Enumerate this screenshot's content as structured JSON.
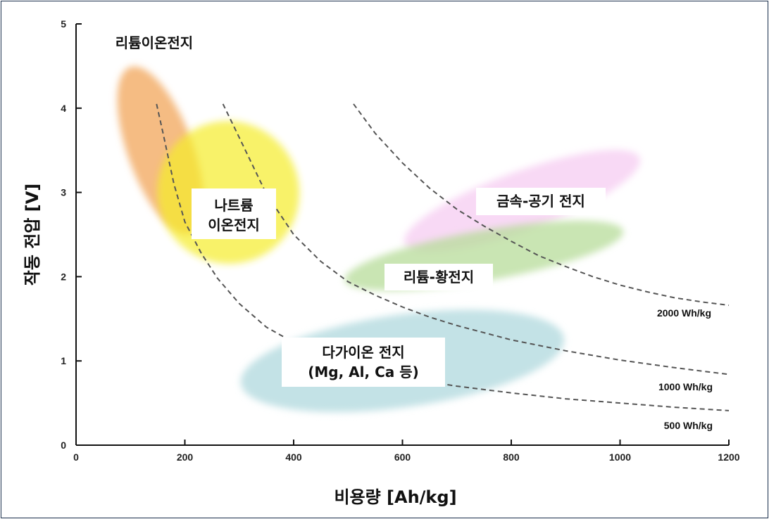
{
  "chart_data": {
    "type": "scatter",
    "title": "",
    "xlabel": "비용량 [Ah/kg]",
    "ylabel": "작동 전압 [V]",
    "xlim": [
      0,
      1200
    ],
    "ylim": [
      0,
      5
    ],
    "xticks": [
      "0",
      "200",
      "400",
      "600",
      "800",
      "1000",
      "1200"
    ],
    "yticks": [
      "0",
      "1",
      "2",
      "3",
      "4",
      "5"
    ],
    "grid": false,
    "regions": [
      {
        "name": "리튬이온전지",
        "lines": [
          "리튬이온전지"
        ],
        "color": "#f2a65a",
        "center": [
          155,
          3.5
        ],
        "rx": 60,
        "ry": 1.05,
        "rotate": -20,
        "opacity": 0.75
      },
      {
        "name": "나트륨 이온전지",
        "lines": [
          "나트륨",
          "이온전지"
        ],
        "color": "#f5ec2a",
        "center": [
          280,
          3.0
        ],
        "rx": 130,
        "ry": 0.85,
        "rotate": -30,
        "opacity": 0.7
      },
      {
        "name": "금속-공기 전지",
        "lines": [
          "금속-공기 전지"
        ],
        "color": "#f3c0ee",
        "center": [
          820,
          2.9
        ],
        "rx": 230,
        "ry": 0.35,
        "rotate": -20,
        "opacity": 0.6
      },
      {
        "name": "리튬-황전지",
        "lines": [
          "리튬-황전지"
        ],
        "color": "#b7dc9a",
        "center": [
          750,
          2.25
        ],
        "rx": 260,
        "ry": 0.3,
        "rotate": -10,
        "opacity": 0.75
      },
      {
        "name": "다가이온 전지",
        "lines": [
          "다가이온 전지",
          "(Mg, Al, Ca 등)"
        ],
        "color": "#a9d6db",
        "center": [
          600,
          1.0
        ],
        "rx": 300,
        "ry": 0.55,
        "rotate": -8,
        "opacity": 0.7
      }
    ],
    "series": [
      {
        "name": "2000 Wh/kg",
        "label": "2000 Wh/kg",
        "x": [
          510,
          550,
          600,
          650,
          700,
          750,
          800,
          850,
          900,
          950,
          1000,
          1050,
          1100,
          1150,
          1200
        ],
        "y": [
          4.05,
          3.7,
          3.35,
          3.05,
          2.8,
          2.6,
          2.42,
          2.25,
          2.12,
          2.0,
          1.9,
          1.82,
          1.75,
          1.7,
          1.66
        ]
      },
      {
        "name": "1000 Wh/kg",
        "label": "1000 Wh/kg",
        "x": [
          270,
          300,
          350,
          400,
          450,
          500,
          550,
          600,
          650,
          700,
          800,
          900,
          1000,
          1100,
          1200
        ],
        "y": [
          4.05,
          3.65,
          2.98,
          2.5,
          2.18,
          1.94,
          1.78,
          1.64,
          1.52,
          1.42,
          1.25,
          1.12,
          1.01,
          0.92,
          0.84
        ]
      },
      {
        "name": "500 Wh/kg",
        "label": "500 Wh/kg",
        "x": [
          148,
          160,
          180,
          200,
          230,
          260,
          300,
          350,
          400,
          450,
          500,
          600,
          700,
          800,
          900,
          1000,
          1100,
          1200
        ],
        "y": [
          4.05,
          3.7,
          3.1,
          2.65,
          2.28,
          1.98,
          1.68,
          1.4,
          1.22,
          1.06,
          0.95,
          0.8,
          0.7,
          0.62,
          0.55,
          0.5,
          0.45,
          0.41
        ]
      }
    ]
  }
}
